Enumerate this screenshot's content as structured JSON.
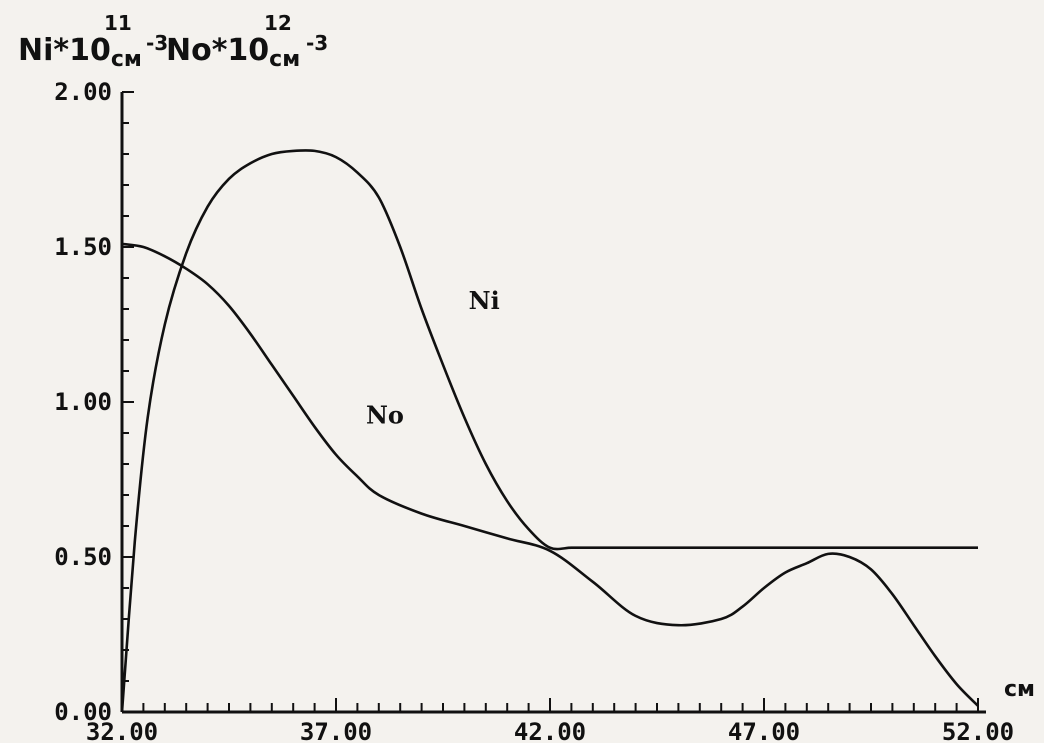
{
  "chart_data": {
    "type": "line",
    "ylabel": {
      "part1_main": "Ni*10",
      "part1_unit": "см",
      "part1_exp": "11",
      "part1_sub": "-3",
      "part2_main": "No*10",
      "part2_unit": "см",
      "part2_exp": "12",
      "part2_sub": "-3"
    },
    "xlabel": "см",
    "xlim": [
      32,
      52
    ],
    "ylim": [
      0,
      2
    ],
    "x_tick_labels": [
      "32.00",
      "37.00",
      "42.00",
      "47.00",
      "52.00"
    ],
    "y_tick_labels": [
      "0.00",
      "0.50",
      "1.00",
      "1.50",
      "2.00"
    ],
    "grid": false,
    "series": [
      {
        "name": "Ni",
        "x": [
          32.0,
          32.3,
          32.6,
          33.0,
          33.5,
          34.0,
          34.5,
          35.0,
          35.5,
          36.0,
          36.5,
          37.0,
          37.5,
          38.0,
          38.5,
          39.0,
          39.5,
          40.0,
          40.5,
          41.0,
          41.5,
          42.0,
          42.5,
          43.0,
          44.0,
          45.0,
          46.0,
          47.0,
          48.0,
          49.0,
          50.0,
          51.0,
          52.0
        ],
        "y": [
          0.0,
          0.55,
          0.95,
          1.25,
          1.48,
          1.63,
          1.72,
          1.77,
          1.8,
          1.81,
          1.81,
          1.79,
          1.74,
          1.66,
          1.5,
          1.3,
          1.12,
          0.95,
          0.8,
          0.68,
          0.59,
          0.53,
          0.53,
          0.53,
          0.53,
          0.53,
          0.53,
          0.53,
          0.53,
          0.53,
          0.53,
          0.53,
          0.53
        ]
      },
      {
        "name": "No",
        "x": [
          32.0,
          32.5,
          33.0,
          33.5,
          34.0,
          34.5,
          35.0,
          35.5,
          36.0,
          36.5,
          37.0,
          37.5,
          38.0,
          39.0,
          40.0,
          41.0,
          42.0,
          43.0,
          44.0,
          45.0,
          46.0,
          46.5,
          47.0,
          47.5,
          48.0,
          48.5,
          49.0,
          49.5,
          50.0,
          50.5,
          51.0,
          51.5,
          52.0
        ],
        "y": [
          1.51,
          1.5,
          1.47,
          1.43,
          1.38,
          1.31,
          1.22,
          1.12,
          1.02,
          0.92,
          0.83,
          0.76,
          0.7,
          0.64,
          0.6,
          0.56,
          0.52,
          0.42,
          0.31,
          0.28,
          0.3,
          0.34,
          0.4,
          0.45,
          0.48,
          0.51,
          0.5,
          0.46,
          0.38,
          0.28,
          0.18,
          0.09,
          0.02
        ]
      }
    ]
  }
}
